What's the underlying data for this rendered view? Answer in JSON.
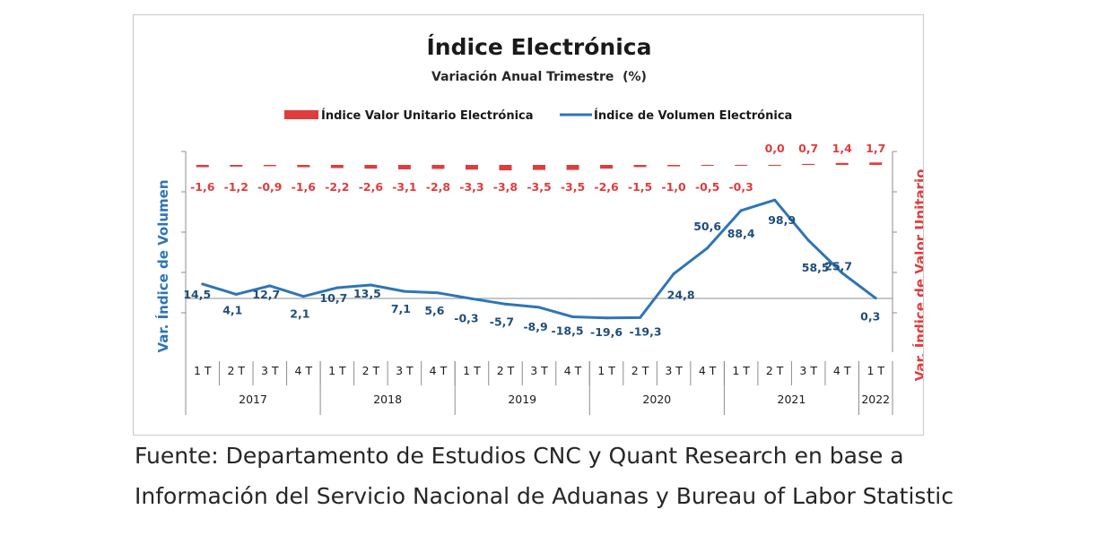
{
  "chart_data": {
    "type": "line",
    "title": "Índice Electrónica",
    "subtitle": "Variación Anual Trimestre  (%)",
    "y_left_label": "Var. Índice de Volumen",
    "y_right_label": "Var. Índice de Valor Unitario",
    "legend_position": "top",
    "grid": false,
    "categories": [
      "1 T",
      "2 T",
      "3 T",
      "4 T",
      "1 T",
      "2 T",
      "3 T",
      "4 T",
      "1 T",
      "2 T",
      "3 T",
      "4 T",
      "1 T",
      "2 T",
      "3 T",
      "4 T",
      "1 T",
      "2 T",
      "3 T",
      "4 T",
      "1 T"
    ],
    "years": [
      {
        "label": "2017",
        "count": 4
      },
      {
        "label": "2018",
        "count": 4
      },
      {
        "label": "2019",
        "count": 4
      },
      {
        "label": "2020",
        "count": 4
      },
      {
        "label": "2021",
        "count": 4
      },
      {
        "label": "2022",
        "count": 1
      }
    ],
    "series": [
      {
        "name": "Índice Valor Unitario Electrónica",
        "type": "bar",
        "axis": "right",
        "color": "#e03c3c",
        "values": [
          -1.6,
          -1.2,
          -0.9,
          -1.6,
          -2.2,
          -2.6,
          -3.1,
          -2.8,
          -3.3,
          -3.8,
          -3.5,
          -3.5,
          -2.6,
          -1.5,
          -1.0,
          -0.5,
          -0.3,
          0.0,
          0.7,
          1.4,
          1.7
        ],
        "labels": [
          "-1,6",
          "-1,2",
          "-0,9",
          "-1,6",
          "-2,2",
          "-2,6",
          "-3,1",
          "-2,8",
          "-3,3",
          "-3,8",
          "-3,5",
          "-3,5",
          "-2,6",
          "-1,5",
          "-1,0",
          "-0,5",
          "-0,3",
          "0,0",
          "0,7",
          "1,4",
          "1,7"
        ]
      },
      {
        "name": "Índice de Volumen Electrónica",
        "type": "line",
        "axis": "left",
        "color": "#2e75b6",
        "values": [
          14.5,
          4.1,
          12.7,
          2.1,
          10.7,
          13.5,
          7.1,
          5.6,
          -0.3,
          -5.7,
          -8.9,
          -18.5,
          -19.6,
          -19.3,
          24.8,
          50.6,
          88.4,
          98.9,
          58.5,
          25.7,
          0.3
        ],
        "labels": [
          "14,5",
          "4,1",
          "12,7",
          "2,1",
          "10,7",
          "13,5",
          "7,1",
          "5,6",
          "-0,3",
          "-5,7",
          "-8,9",
          "-18,5",
          "-19,6",
          "-19,3",
          "24,8",
          "50,6",
          "88,4",
          "98,9",
          "58,5",
          "25,7",
          "0,3"
        ]
      }
    ]
  },
  "source": {
    "line1": "Fuente: Departamento de Estudios CNC y Quant Research en base a",
    "line2": "Información del Servicio Nacional de Aduanas y Bureau of Labor Statistic"
  }
}
